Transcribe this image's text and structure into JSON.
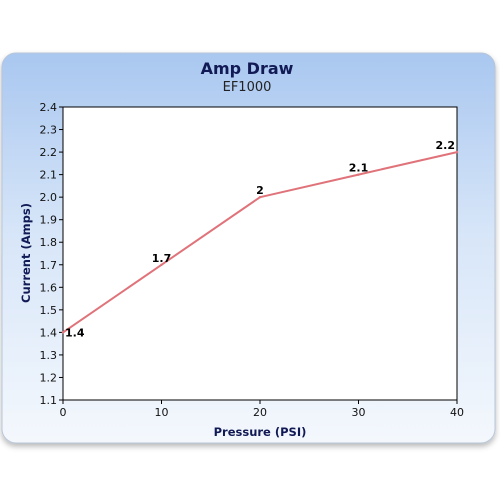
{
  "chart_data": {
    "type": "line",
    "title": "Amp Draw",
    "subtitle": "EF1000",
    "xlabel": "Pressure (PSI)",
    "ylabel": "Current (Amps)",
    "xlim": [
      0,
      40
    ],
    "ylim": [
      1.1,
      2.4
    ],
    "x_ticks": [
      "0",
      "10",
      "20",
      "30",
      "40"
    ],
    "y_ticks": [
      "1.1",
      "1.2",
      "1.3",
      "1.4",
      "1.5",
      "1.6",
      "1.7",
      "1.8",
      "1.9",
      "2.0",
      "2.1",
      "2.2",
      "2.3",
      "2.4"
    ],
    "grid": false,
    "legend": "none",
    "series": [
      {
        "x": [
          0,
          10,
          20,
          30,
          40
        ],
        "values": [
          1.4,
          1.7,
          2.0,
          2.1,
          2.2
        ],
        "labels": [
          "1.4",
          "1.7",
          "2",
          "2.1",
          "2.2"
        ]
      }
    ],
    "colors": {
      "line": "#e0737a",
      "frame_top": "#a9c7f0",
      "frame_bottom": "#eef4fc",
      "title": "#111a55"
    }
  }
}
